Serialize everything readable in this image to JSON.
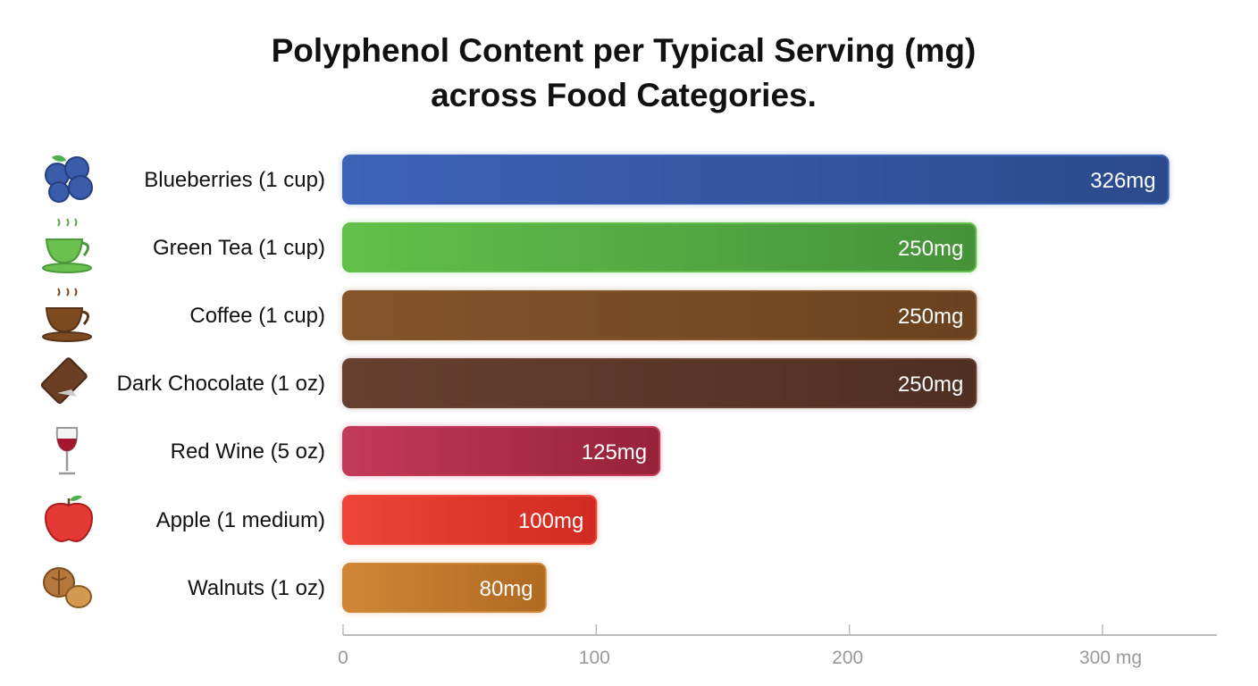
{
  "chart_data": {
    "type": "bar",
    "orientation": "horizontal",
    "title": "Polyphenol Content per Typical Serving (mg) across Food Categories.",
    "title_lines": [
      "Polyphenol Content per Typical Serving (mg)",
      "across Food Categories."
    ],
    "categories": [
      "Blueberries (1 cup)",
      "Green Tea (1 cup)",
      "Coffee (1 cup)",
      "Dark Chocolate (1 oz)",
      "Red Wine (5 oz)",
      "Apple (1 medium)",
      "Walnuts (1 oz)"
    ],
    "values": [
      326,
      250,
      250,
      250,
      125,
      100,
      80
    ],
    "data_labels": [
      "326mg",
      "250mg",
      "250mg",
      "250mg",
      "125mg",
      "100mg",
      "80mg"
    ],
    "icons": [
      "blueberries-icon",
      "green-tea-cup-icon",
      "coffee-cup-icon",
      "chocolate-bar-icon",
      "wine-glass-icon",
      "apple-icon",
      "walnut-icon"
    ],
    "colors": [
      [
        "#3d63b8",
        "#2b4a8c"
      ],
      [
        "#62c04a",
        "#46923a"
      ],
      [
        "#85552a",
        "#6a421f"
      ],
      [
        "#66402f",
        "#4e2f22"
      ],
      [
        "#c23a5a",
        "#962238"
      ],
      [
        "#ef4438",
        "#d02a22"
      ],
      [
        "#cf8636",
        "#b06a22"
      ]
    ],
    "xlim": [
      0,
      340
    ],
    "xticks": [
      0,
      100,
      200,
      300
    ],
    "xtick_labels": [
      "0",
      "100",
      "200",
      "300 mg"
    ],
    "grid": false
  }
}
